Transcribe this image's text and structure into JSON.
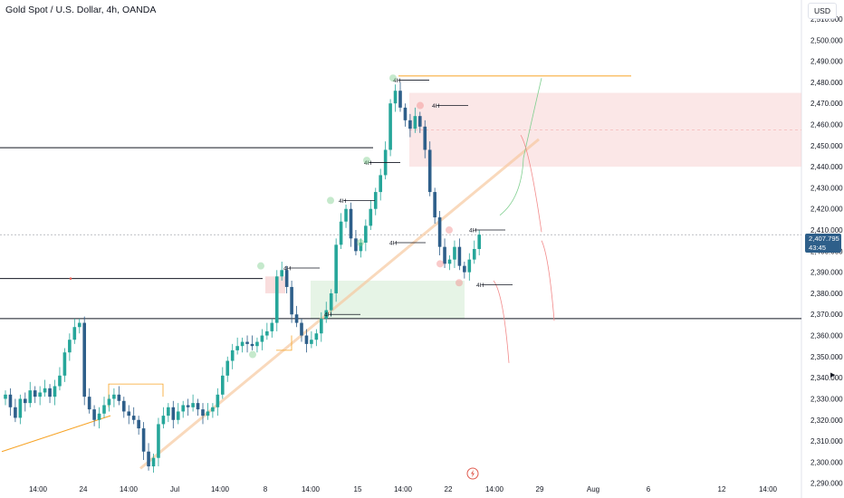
{
  "header": {
    "title": "Gold Spot / U.S. Dollar, 4h, OANDA"
  },
  "currency_button": "USD",
  "current_price": {
    "value": "2,407.795",
    "countdown": "43:45"
  },
  "icons": {
    "logo": "tradingview-lightning-icon",
    "collapse": "triangle-right-icon"
  },
  "colors": {
    "up": "#26a69a",
    "down": "#2e5f8a",
    "line_orange": "#f7a325",
    "zone_red": "#f7d4d4",
    "zone_green": "#dbefdb",
    "arrow_red": "#f28a8a",
    "arrow_green": "#7fcf8f"
  },
  "chart_data": {
    "type": "candlestick",
    "symbol": "Gold Spot / U.S. Dollar",
    "interval": "4h",
    "exchange": "OANDA",
    "currency": "USD",
    "ylim": [
      2283,
      2519
    ],
    "y_ticks": [
      2290,
      2300,
      2310,
      2320,
      2330,
      2340,
      2350,
      2360,
      2370,
      2380,
      2390,
      2400,
      2410,
      2420,
      2430,
      2440,
      2450,
      2460,
      2470,
      2480,
      2490,
      2500,
      2510
    ],
    "x_ticks": [
      "14:00",
      "24",
      "14:00",
      "Jul",
      "14:00",
      "8",
      "14:00",
      "15",
      "14:00",
      "22",
      "14:00",
      "29",
      "Aug",
      "6",
      "12",
      "14:00"
    ],
    "closes": [
      2332,
      2326,
      2321,
      2330,
      2328,
      2334,
      2331,
      2333,
      2335,
      2331,
      2336,
      2341,
      2352,
      2358,
      2364,
      2366,
      2331,
      2325,
      2320,
      2323,
      2327,
      2330,
      2332,
      2329,
      2324,
      2322,
      2320,
      2316,
      2305,
      2298,
      2302,
      2318,
      2322,
      2326,
      2320,
      2324,
      2327,
      2326,
      2328,
      2325,
      2322,
      2324,
      2326,
      2332,
      2341,
      2348,
      2353,
      2355,
      2357,
      2356,
      2355,
      2357,
      2360,
      2362,
      2366,
      2388,
      2391,
      2383,
      2370,
      2366,
      2360,
      2356,
      2358,
      2361,
      2368,
      2372,
      2380,
      2403,
      2414,
      2420,
      2406,
      2400,
      2404,
      2412,
      2420,
      2428,
      2436,
      2448,
      2470,
      2476,
      2468,
      2462,
      2458,
      2464,
      2459,
      2448,
      2428,
      2416,
      2402,
      2394,
      2396,
      2402,
      2393,
      2390,
      2396,
      2401,
      2407.795
    ],
    "levels": [
      {
        "label": "4H",
        "price": 2481
      },
      {
        "label": "4H",
        "price": 2469
      },
      {
        "label": "4H",
        "price": 2442
      },
      {
        "label": "4H",
        "price": 2424
      },
      {
        "label": "4H",
        "price": 2410
      },
      {
        "label": "4H",
        "price": 2404
      },
      {
        "label": "4H",
        "price": 2392
      },
      {
        "label": "4H",
        "price": 2384
      },
      {
        "label": "4H",
        "price": 2370
      }
    ]
  }
}
